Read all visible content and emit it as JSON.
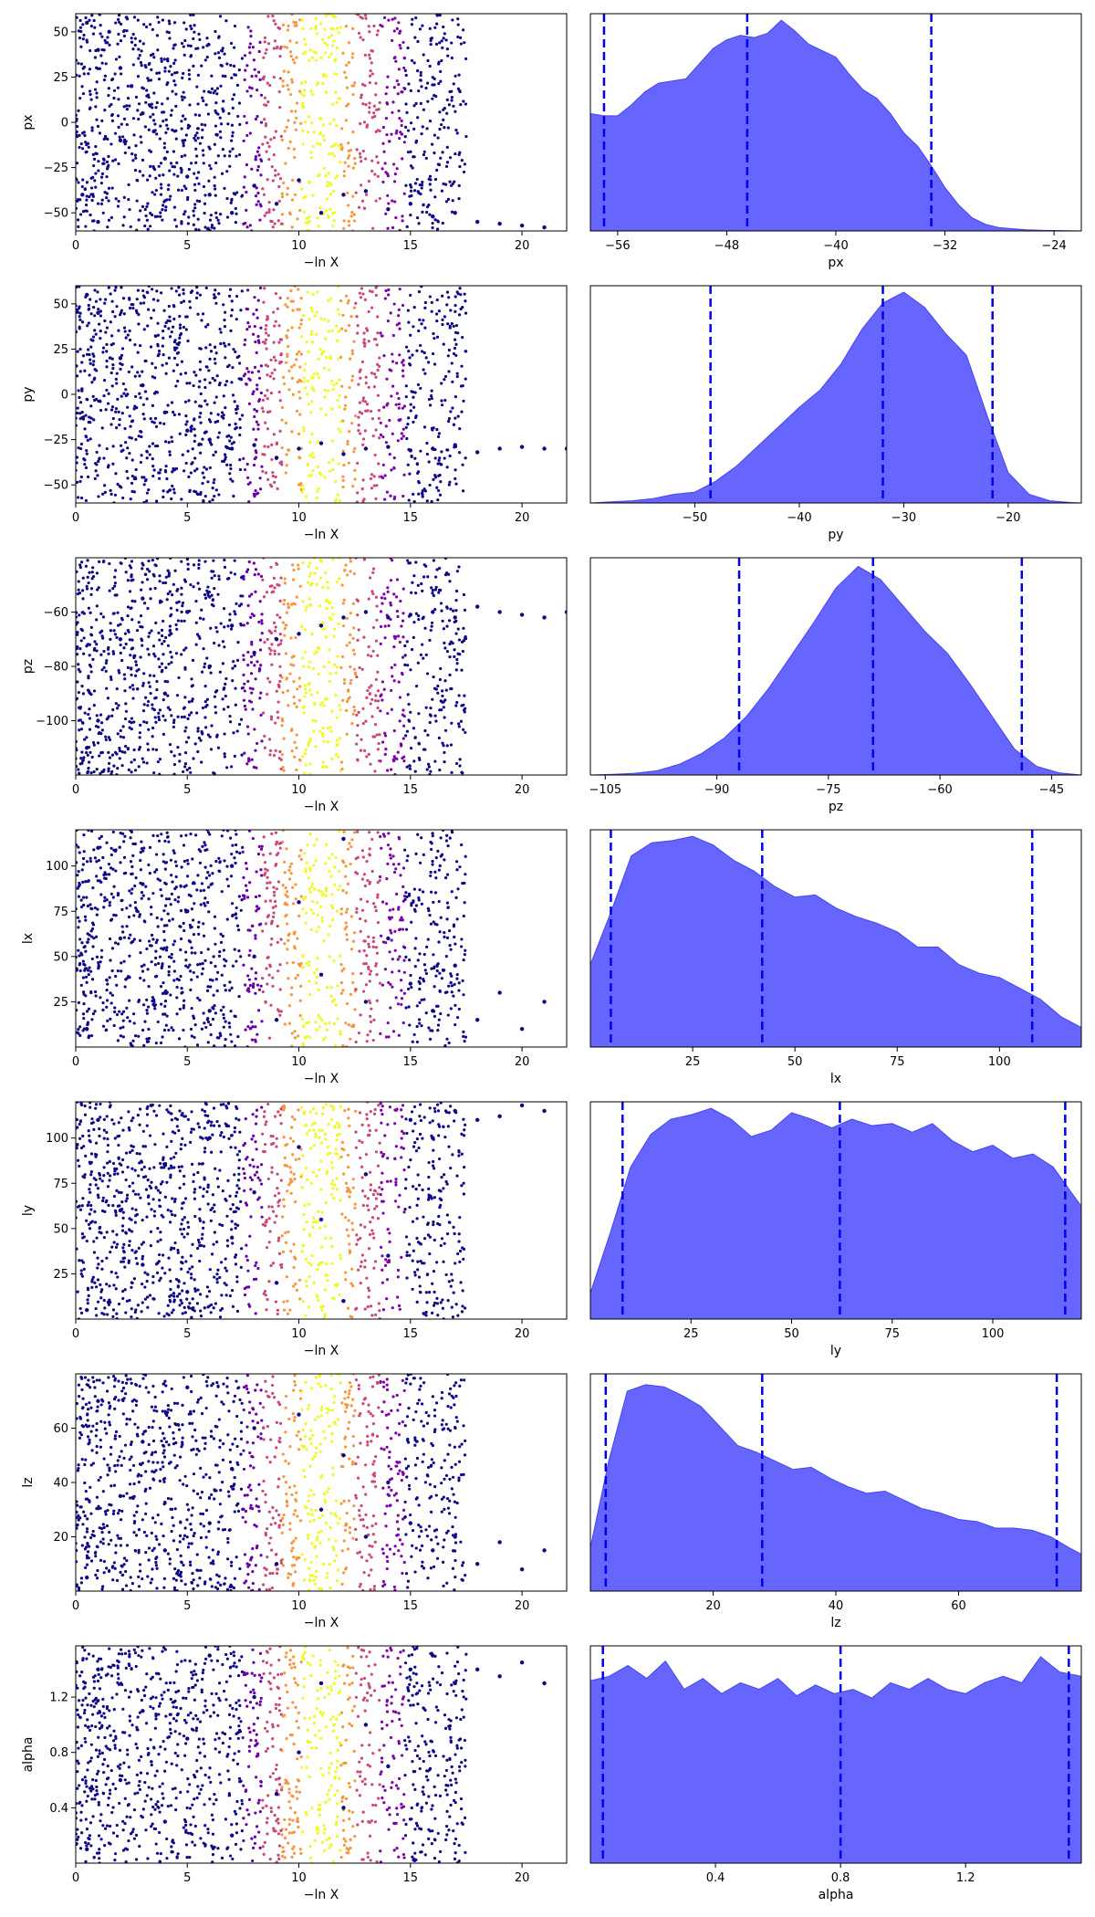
{
  "chart_data": [
    {
      "type": "scatter",
      "xlabel": "−ln X",
      "ylabel": "px",
      "xlim": [
        0,
        22
      ],
      "ylim": [
        -60,
        60
      ],
      "xticks": [
        0,
        5,
        10,
        15,
        20
      ],
      "yticks": [
        -50,
        -25,
        0,
        25,
        50
      ],
      "points": [
        [
          0.5,
          55
        ],
        [
          1,
          40
        ],
        [
          1.5,
          50
        ],
        [
          2,
          30
        ],
        [
          2.5,
          20
        ],
        [
          3,
          5
        ],
        [
          0.3,
          -40
        ],
        [
          1,
          -55
        ],
        [
          2,
          -10
        ],
        [
          3.5,
          -5
        ],
        [
          4,
          -20
        ],
        [
          5,
          -30
        ],
        [
          6,
          -40
        ],
        [
          7,
          -50
        ],
        [
          8,
          -35
        ],
        [
          9,
          -45
        ],
        [
          10,
          -32
        ],
        [
          11,
          -50
        ],
        [
          12,
          -40
        ],
        [
          13,
          -38
        ],
        [
          14,
          -48
        ],
        [
          15,
          -45
        ],
        [
          16,
          -52
        ],
        [
          17,
          -50
        ],
        [
          18,
          -55
        ],
        [
          19,
          -56
        ],
        [
          20,
          -57
        ],
        [
          21,
          -58
        ]
      ]
    },
    {
      "type": "area",
      "xlabel": "px",
      "xlim": [
        -58,
        -22
      ],
      "xticks": [
        -56,
        -48,
        -40,
        -32,
        -24
      ],
      "quantiles": [
        -57,
        -46.5,
        -33
      ],
      "x": [
        -58,
        -57,
        -56,
        -55,
        -54,
        -53,
        -52,
        -51,
        -50,
        -49,
        -48,
        -47,
        -46,
        -45,
        -44,
        -43,
        -42,
        -41,
        -40,
        -39,
        -38,
        -37,
        -36,
        -35,
        -34,
        -33,
        -32,
        -31,
        -30,
        -29,
        -28,
        -27,
        -26,
        -25,
        -24,
        -23,
        -22
      ],
      "y": [
        0.54,
        0.53,
        0.53,
        0.58,
        0.64,
        0.68,
        0.69,
        0.7,
        0.77,
        0.84,
        0.88,
        0.9,
        0.89,
        0.91,
        0.97,
        0.92,
        0.86,
        0.83,
        0.8,
        0.72,
        0.65,
        0.61,
        0.54,
        0.45,
        0.39,
        0.3,
        0.2,
        0.12,
        0.06,
        0.03,
        0.015,
        0.01,
        0.005,
        0.003,
        0.002,
        0.001,
        0.0
      ]
    },
    {
      "type": "scatter",
      "xlabel": "−ln X",
      "ylabel": "py",
      "xlim": [
        0,
        22
      ],
      "ylim": [
        -60,
        60
      ],
      "xticks": [
        0,
        5,
        10,
        15,
        20
      ],
      "yticks": [
        -50,
        -25,
        0,
        25,
        50
      ],
      "points": [
        [
          0.5,
          55
        ],
        [
          1,
          45
        ],
        [
          2,
          20
        ],
        [
          3,
          5
        ],
        [
          4,
          -10
        ],
        [
          5,
          -20
        ],
        [
          6,
          -25
        ],
        [
          7,
          -30
        ],
        [
          8,
          -28
        ],
        [
          9,
          -35
        ],
        [
          10,
          -30
        ],
        [
          11,
          -27
        ],
        [
          12,
          -33
        ],
        [
          13,
          -30
        ],
        [
          14,
          -29
        ],
        [
          15,
          -31
        ],
        [
          16,
          -30
        ],
        [
          17,
          -28
        ],
        [
          18,
          -32
        ],
        [
          19,
          -30
        ],
        [
          20,
          -29
        ],
        [
          21,
          -30
        ],
        [
          22,
          -30
        ]
      ]
    },
    {
      "type": "area",
      "xlabel": "py",
      "xlim": [
        -60,
        -13
      ],
      "xticks": [
        -50,
        -40,
        -30,
        -20
      ],
      "quantiles": [
        -48.5,
        -32,
        -21.5
      ],
      "x": [
        -60,
        -58,
        -56,
        -54,
        -52,
        -50,
        -48,
        -46,
        -44,
        -42,
        -40,
        -38,
        -36,
        -34,
        -32,
        -30,
        -28,
        -26,
        -24,
        -22,
        -20,
        -18,
        -16,
        -14,
        -13
      ],
      "y": [
        0.0,
        0.005,
        0.01,
        0.02,
        0.04,
        0.05,
        0.1,
        0.17,
        0.26,
        0.35,
        0.44,
        0.52,
        0.64,
        0.8,
        0.92,
        0.97,
        0.9,
        0.78,
        0.68,
        0.4,
        0.14,
        0.04,
        0.01,
        0.002,
        0.0
      ]
    },
    {
      "type": "scatter",
      "xlabel": "−ln X",
      "ylabel": "pz",
      "xlim": [
        0,
        22
      ],
      "ylim": [
        -120,
        -40
      ],
      "xticks": [
        0,
        5,
        10,
        15,
        20
      ],
      "yticks": [
        -100,
        -80,
        -60
      ],
      "points": [
        [
          0.5,
          -110
        ],
        [
          1,
          -100
        ],
        [
          2,
          -70
        ],
        [
          3,
          -55
        ],
        [
          4,
          -90
        ],
        [
          5,
          -60
        ],
        [
          6,
          -80
        ],
        [
          7,
          -65
        ],
        [
          8,
          -75
        ],
        [
          9,
          -70
        ],
        [
          10,
          -68
        ],
        [
          11,
          -65
        ],
        [
          12,
          -62
        ],
        [
          13,
          -60
        ],
        [
          14,
          -62
        ],
        [
          15,
          -61
        ],
        [
          16,
          -60
        ],
        [
          17,
          -62
        ],
        [
          18,
          -58
        ],
        [
          19,
          -60
        ],
        [
          20,
          -61
        ],
        [
          21,
          -62
        ],
        [
          22,
          -60
        ]
      ]
    },
    {
      "type": "area",
      "xlabel": "pz",
      "xlim": [
        -107,
        -41
      ],
      "xticks": [
        -105,
        -90,
        -75,
        -60,
        -45
      ],
      "quantiles": [
        -87,
        -69,
        -49
      ],
      "x": [
        -107,
        -104,
        -101,
        -98,
        -95,
        -92,
        -89,
        -86,
        -83,
        -80,
        -77,
        -74,
        -71,
        -68,
        -65,
        -62,
        -59,
        -56,
        -53,
        -50,
        -47,
        -44,
        -41
      ],
      "y": [
        0.0,
        0.003,
        0.008,
        0.02,
        0.05,
        0.1,
        0.17,
        0.27,
        0.4,
        0.55,
        0.7,
        0.86,
        0.96,
        0.9,
        0.78,
        0.66,
        0.56,
        0.42,
        0.27,
        0.12,
        0.04,
        0.01,
        0.0
      ]
    },
    {
      "type": "scatter",
      "xlabel": "−ln X",
      "ylabel": "lx",
      "xlim": [
        0,
        22
      ],
      "ylim": [
        0,
        120
      ],
      "xticks": [
        0,
        5,
        10,
        15,
        20
      ],
      "yticks": [
        25,
        50,
        75,
        100
      ],
      "points": [
        [
          0.5,
          10
        ],
        [
          1,
          110
        ],
        [
          2,
          60
        ],
        [
          3,
          90
        ],
        [
          4,
          30
        ],
        [
          5,
          75
        ],
        [
          6,
          20
        ],
        [
          7,
          100
        ],
        [
          8,
          50
        ],
        [
          9,
          15
        ],
        [
          10,
          80
        ],
        [
          11,
          40
        ],
        [
          12,
          115
        ],
        [
          13,
          25
        ],
        [
          14,
          60
        ],
        [
          15,
          35
        ],
        [
          16,
          20
        ],
        [
          17,
          45
        ],
        [
          18,
          15
        ],
        [
          19,
          30
        ],
        [
          20,
          10
        ],
        [
          21,
          25
        ]
      ]
    },
    {
      "type": "area",
      "xlabel": "lx",
      "xlim": [
        0,
        120
      ],
      "xticks": [
        25,
        50,
        75,
        100
      ],
      "quantiles": [
        5,
        42,
        108
      ],
      "x": [
        0,
        5,
        10,
        15,
        20,
        25,
        30,
        35,
        40,
        45,
        50,
        55,
        60,
        65,
        70,
        75,
        80,
        85,
        90,
        95,
        100,
        105,
        110,
        115,
        120
      ],
      "y": [
        0.38,
        0.62,
        0.88,
        0.94,
        0.95,
        0.97,
        0.93,
        0.86,
        0.81,
        0.74,
        0.69,
        0.7,
        0.64,
        0.6,
        0.57,
        0.53,
        0.46,
        0.46,
        0.38,
        0.34,
        0.32,
        0.27,
        0.22,
        0.14,
        0.09
      ]
    },
    {
      "type": "scatter",
      "xlabel": "−ln X",
      "ylabel": "ly",
      "xlim": [
        0,
        22
      ],
      "ylim": [
        0,
        120
      ],
      "xticks": [
        0,
        5,
        10,
        15,
        20
      ],
      "yticks": [
        25,
        50,
        75,
        100
      ],
      "points": [
        [
          0.5,
          5
        ],
        [
          1,
          110
        ],
        [
          2,
          60
        ],
        [
          3,
          30
        ],
        [
          4,
          85
        ],
        [
          5,
          15
        ],
        [
          6,
          100
        ],
        [
          7,
          45
        ],
        [
          8,
          70
        ],
        [
          9,
          20
        ],
        [
          10,
          95
        ],
        [
          11,
          55
        ],
        [
          12,
          10
        ],
        [
          13,
          80
        ],
        [
          14,
          35
        ],
        [
          15,
          110
        ],
        [
          16,
          100
        ],
        [
          17,
          115
        ],
        [
          18,
          110
        ],
        [
          19,
          112
        ],
        [
          20,
          118
        ],
        [
          21,
          115
        ]
      ]
    },
    {
      "type": "area",
      "xlabel": "ly",
      "xlim": [
        0,
        122
      ],
      "xticks": [
        25,
        50,
        75,
        100
      ],
      "quantiles": [
        8,
        62,
        118
      ],
      "x": [
        0,
        5,
        10,
        15,
        20,
        25,
        30,
        35,
        40,
        45,
        50,
        55,
        60,
        65,
        70,
        75,
        80,
        85,
        90,
        95,
        100,
        105,
        110,
        115,
        120,
        122
      ],
      "y": [
        0.12,
        0.4,
        0.7,
        0.85,
        0.92,
        0.94,
        0.97,
        0.92,
        0.84,
        0.87,
        0.95,
        0.92,
        0.88,
        0.92,
        0.89,
        0.9,
        0.86,
        0.9,
        0.82,
        0.77,
        0.8,
        0.74,
        0.76,
        0.7,
        0.57,
        0.52
      ]
    },
    {
      "type": "scatter",
      "xlabel": "−ln X",
      "ylabel": "lz",
      "xlim": [
        0,
        22
      ],
      "ylim": [
        0,
        80
      ],
      "xticks": [
        0,
        5,
        10,
        15,
        20
      ],
      "yticks": [
        20,
        40,
        60
      ],
      "points": [
        [
          0.5,
          5
        ],
        [
          1,
          70
        ],
        [
          2,
          35
        ],
        [
          3,
          55
        ],
        [
          4,
          15
        ],
        [
          5,
          75
        ],
        [
          6,
          25
        ],
        [
          7,
          45
        ],
        [
          8,
          60
        ],
        [
          9,
          10
        ],
        [
          10,
          65
        ],
        [
          11,
          30
        ],
        [
          12,
          50
        ],
        [
          13,
          20
        ],
        [
          14,
          40
        ],
        [
          15,
          25
        ],
        [
          16,
          15
        ],
        [
          17,
          20
        ],
        [
          18,
          10
        ],
        [
          19,
          18
        ],
        [
          20,
          8
        ],
        [
          21,
          15
        ]
      ]
    },
    {
      "type": "area",
      "xlabel": "lz",
      "xlim": [
        0,
        80
      ],
      "xticks": [
        20,
        40,
        60
      ],
      "quantiles": [
        2.5,
        28,
        76
      ],
      "x": [
        0,
        3,
        6,
        9,
        12,
        15,
        18,
        21,
        24,
        27,
        30,
        33,
        36,
        39,
        42,
        45,
        48,
        51,
        54,
        57,
        60,
        63,
        66,
        69,
        72,
        75,
        78,
        80
      ],
      "y": [
        0.2,
        0.6,
        0.92,
        0.95,
        0.94,
        0.9,
        0.85,
        0.76,
        0.67,
        0.64,
        0.6,
        0.56,
        0.57,
        0.52,
        0.48,
        0.45,
        0.46,
        0.42,
        0.38,
        0.36,
        0.33,
        0.32,
        0.29,
        0.29,
        0.28,
        0.25,
        0.2,
        0.17
      ]
    },
    {
      "type": "scatter",
      "xlabel": "−ln X",
      "ylabel": "alpha",
      "xlim": [
        0,
        22
      ],
      "ylim": [
        0,
        1.57
      ],
      "xticks": [
        0,
        5,
        10,
        15,
        20
      ],
      "yticks": [
        0.4,
        0.8,
        1.2
      ],
      "points": [
        [
          0.5,
          0.1
        ],
        [
          1,
          1.4
        ],
        [
          2,
          0.6
        ],
        [
          3,
          1.1
        ],
        [
          4,
          0.3
        ],
        [
          5,
          0.9
        ],
        [
          6,
          1.5
        ],
        [
          7,
          0.2
        ],
        [
          8,
          1.2
        ],
        [
          9,
          0.5
        ],
        [
          10,
          0.8
        ],
        [
          11,
          1.3
        ],
        [
          12,
          0.4
        ],
        [
          13,
          1.0
        ],
        [
          14,
          0.7
        ],
        [
          15,
          1.4
        ],
        [
          16,
          1.5
        ],
        [
          17,
          1.3
        ],
        [
          18,
          1.4
        ],
        [
          19,
          1.35
        ],
        [
          20,
          1.45
        ],
        [
          21,
          1.3
        ]
      ]
    },
    {
      "type": "area",
      "xlabel": "alpha",
      "xlim": [
        0,
        1.57
      ],
      "xticks": [
        0.4,
        0.8,
        1.2
      ],
      "quantiles": [
        0.04,
        0.8,
        1.53
      ],
      "x": [
        0,
        0.06,
        0.12,
        0.18,
        0.24,
        0.3,
        0.36,
        0.42,
        0.48,
        0.54,
        0.6,
        0.66,
        0.72,
        0.78,
        0.84,
        0.9,
        0.96,
        1.02,
        1.08,
        1.14,
        1.2,
        1.26,
        1.32,
        1.38,
        1.44,
        1.5,
        1.57
      ],
      "y": [
        0.84,
        0.86,
        0.91,
        0.85,
        0.93,
        0.8,
        0.85,
        0.78,
        0.83,
        0.8,
        0.85,
        0.77,
        0.82,
        0.78,
        0.8,
        0.76,
        0.83,
        0.8,
        0.85,
        0.8,
        0.78,
        0.83,
        0.86,
        0.83,
        0.95,
        0.88,
        0.86
      ]
    }
  ]
}
